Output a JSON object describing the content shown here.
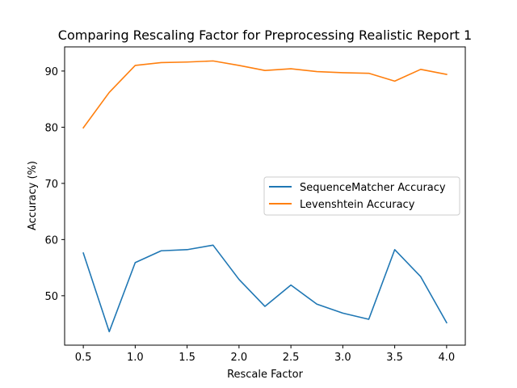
{
  "chart_data": {
    "type": "line",
    "title": "Comparing Rescaling Factor for Preprocessing Realistic Report 1",
    "xlabel": "Rescale Factor",
    "ylabel": "Accuracy (%)",
    "x": [
      0.5,
      0.75,
      1.0,
      1.25,
      1.5,
      1.75,
      2.0,
      2.25,
      2.5,
      2.75,
      3.0,
      3.25,
      3.5,
      3.75,
      4.0
    ],
    "xlim": [
      0.32,
      4.18
    ],
    "ylim": [
      41.2,
      94.3
    ],
    "xticks": [
      "0.5",
      "1.0",
      "1.5",
      "2.0",
      "2.5",
      "3.0",
      "3.5",
      "4.0"
    ],
    "yticks": [
      "50",
      "60",
      "70",
      "80",
      "90"
    ],
    "grid": false,
    "legend_position": "center-right",
    "series": [
      {
        "name": "SequenceMatcher Accuracy",
        "color": "#1f77b4",
        "values": [
          57.6,
          43.6,
          55.9,
          58.0,
          58.2,
          59.0,
          52.9,
          48.1,
          51.9,
          48.5,
          46.9,
          45.8,
          58.2,
          53.4,
          45.2
        ]
      },
      {
        "name": "Levenshtein Accuracy",
        "color": "#ff7f0e",
        "values": [
          79.9,
          86.2,
          91.0,
          91.5,
          91.6,
          91.8,
          91.0,
          90.1,
          90.4,
          89.9,
          89.7,
          89.6,
          88.2,
          90.3,
          89.4
        ]
      }
    ]
  }
}
